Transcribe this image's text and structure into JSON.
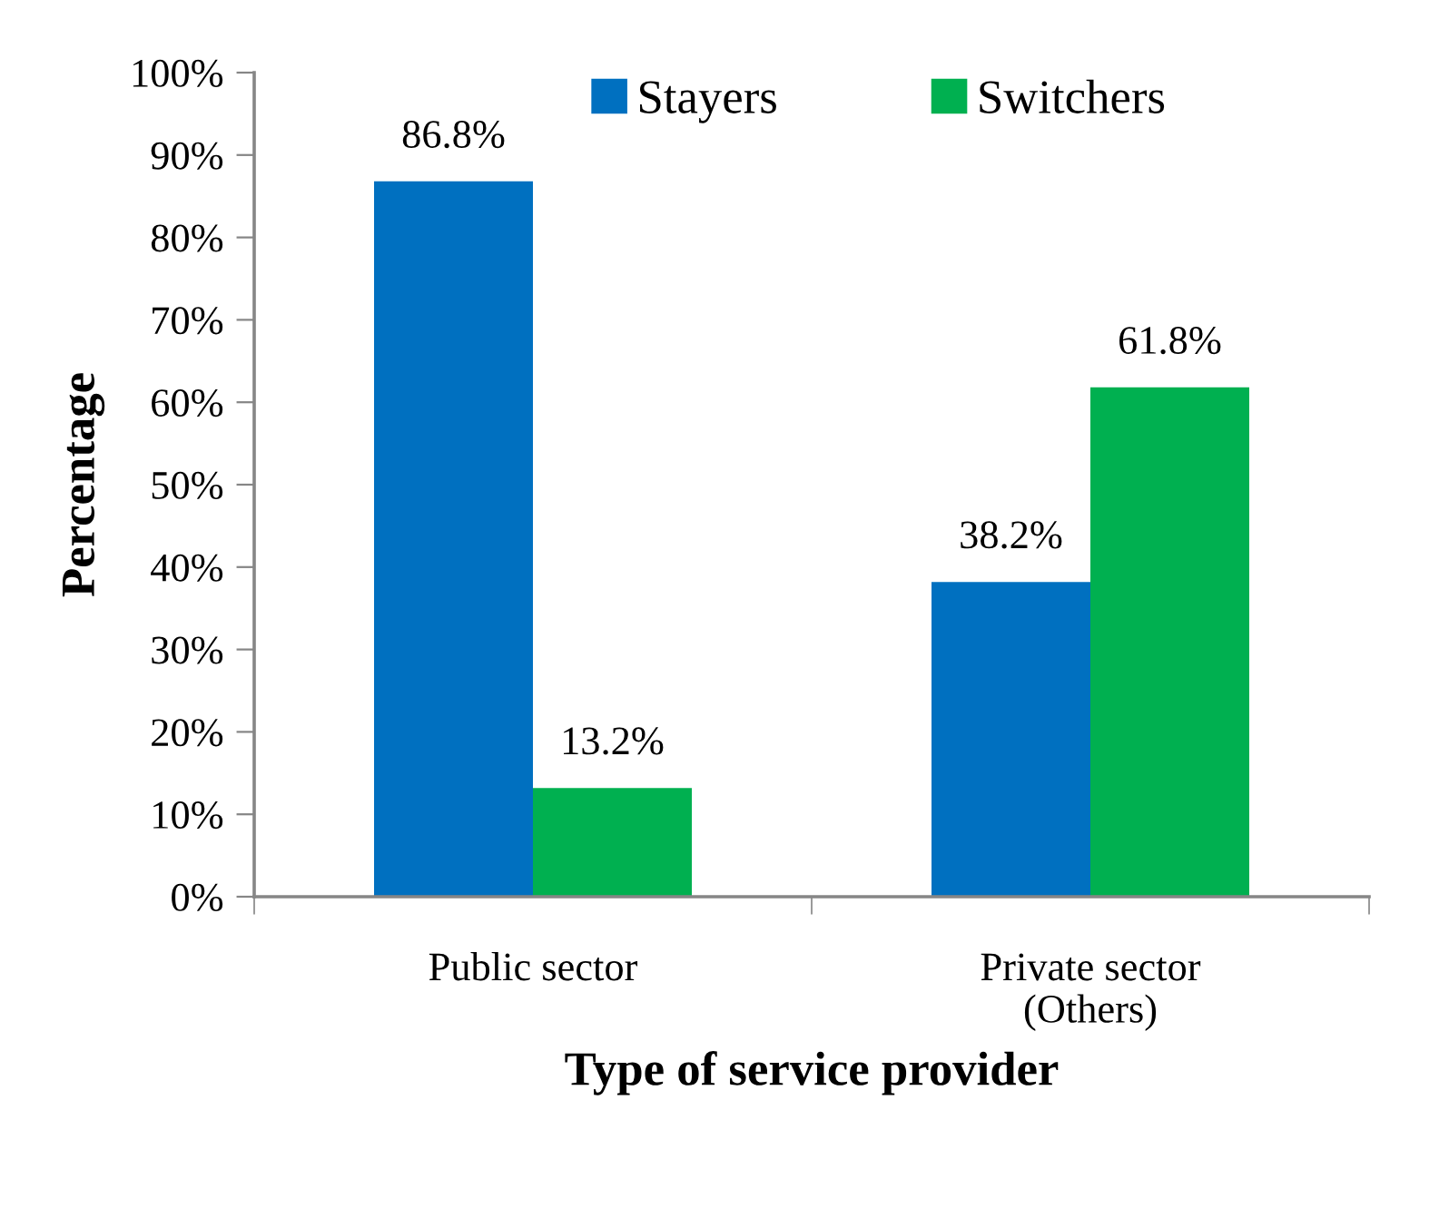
{
  "chart_data": {
    "type": "bar",
    "xlabel": "Type of service provider",
    "ylabel": "Percentage",
    "categories": [
      "Public sector",
      "Private sector\n(Others)"
    ],
    "series": [
      {
        "name": "Stayers",
        "color": "#0070c0",
        "values": [
          86.8,
          38.2
        ],
        "value_labels": [
          "86.8%",
          "38.2%"
        ]
      },
      {
        "name": "Switchers",
        "color": "#00b050",
        "values": [
          13.2,
          61.8
        ],
        "value_labels": [
          "13.2%",
          "61.8%"
        ]
      }
    ],
    "ylim": [
      0,
      100
    ],
    "yticks": [
      {
        "value": 0,
        "label": "0%"
      },
      {
        "value": 10,
        "label": "10%"
      },
      {
        "value": 20,
        "label": "20%"
      },
      {
        "value": 30,
        "label": "30%"
      },
      {
        "value": 40,
        "label": "40%"
      },
      {
        "value": 50,
        "label": "50%"
      },
      {
        "value": 60,
        "label": "60%"
      },
      {
        "value": 70,
        "label": "70%"
      },
      {
        "value": 80,
        "label": "80%"
      },
      {
        "value": 90,
        "label": "90%"
      },
      {
        "value": 100,
        "label": "100%"
      }
    ],
    "grid": false,
    "legend": "top"
  }
}
